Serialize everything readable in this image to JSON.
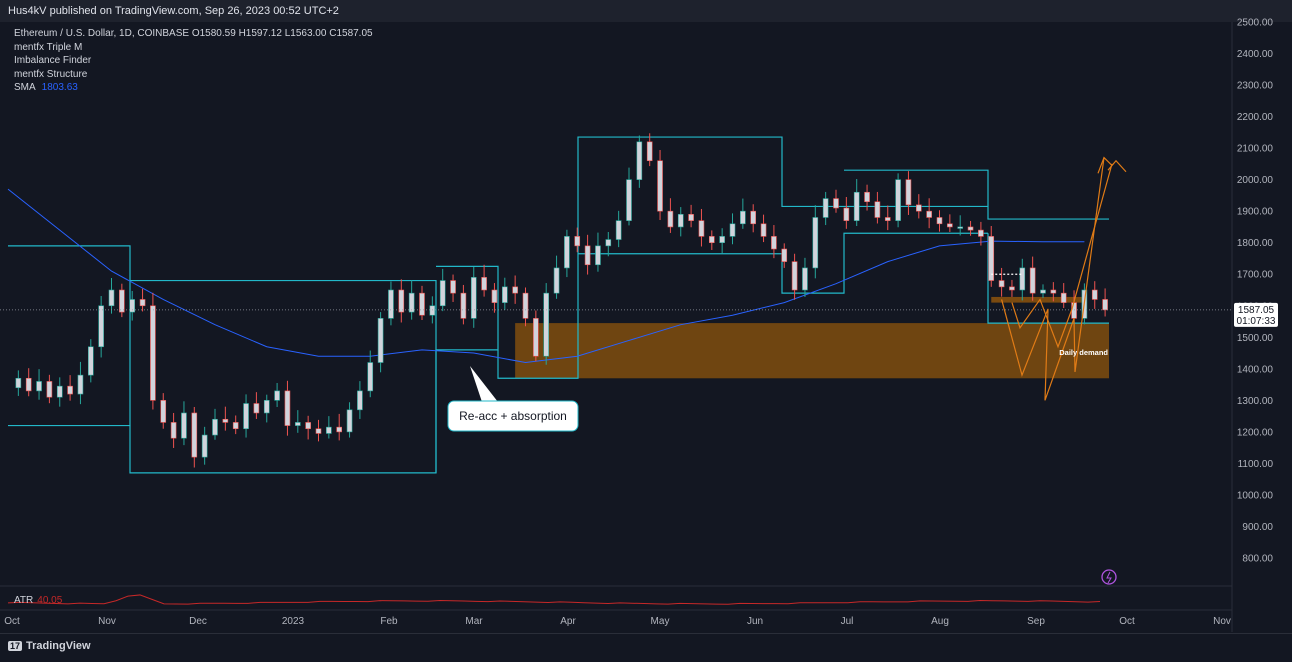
{
  "header": {
    "publish_line": "Hus4kV published on TradingView.com, Sep 26, 2023 00:52 UTC+2"
  },
  "legend": {
    "symbol_line": "Ethereum / U.S. Dollar, 1D, COINBASE",
    "ohlc": {
      "o": "O1580.59",
      "h": "H1597.12",
      "l": "L1563.00",
      "c": "C1587.05"
    },
    "indicators": [
      "mentfx Triple M",
      "Imbalance Finder",
      "mentfx Structure"
    ],
    "sma_label": "SMA",
    "sma_value": "1803.63"
  },
  "atr": {
    "label": "ATR",
    "value": "40.05"
  },
  "price_label": {
    "price": "1587.05",
    "countdown": "01:07:33"
  },
  "annotations": {
    "callout": "Re-acc + absorption",
    "zone_label": "Daily demand"
  },
  "footer": {
    "brand": "TradingView"
  },
  "colors": {
    "background": "#131722",
    "up_candle": "#26a69a",
    "down_candle": "#ef5350",
    "structure_box": "#22b8c9",
    "sma_line": "#2962ff",
    "demand_zone": "#7a4a10",
    "projection": "#e07b16",
    "atr_line": "#c62828"
  },
  "chart_data": {
    "type": "candlestick",
    "title": "Ethereum / U.S. Dollar, 1D, COINBASE",
    "xlabel": "",
    "ylabel": "",
    "ylim": [
      700,
      2500
    ],
    "y_ticks": [
      "2500.00",
      "2400.00",
      "2300.00",
      "2200.00",
      "2100.00",
      "2000.00",
      "1900.00",
      "1800.00",
      "1700.00",
      "1600.00",
      "1500.00",
      "1400.00",
      "1300.00",
      "1200.00",
      "1100.00",
      "1000.00",
      "900.00",
      "800.00"
    ],
    "x_ticks": [
      "Oct",
      "Nov",
      "Dec",
      "2023",
      "Feb",
      "Mar",
      "Apr",
      "May",
      "Jun",
      "Jul",
      "Aug",
      "Sep",
      "Oct",
      "Nov"
    ],
    "last_close": 1587.05,
    "price_path": [
      [
        0,
        1340
      ],
      [
        1,
        1370
      ],
      [
        2,
        1330
      ],
      [
        3,
        1360
      ],
      [
        4,
        1310
      ],
      [
        5,
        1345
      ],
      [
        6,
        1320
      ],
      [
        7,
        1380
      ],
      [
        8,
        1470
      ],
      [
        9,
        1600
      ],
      [
        10,
        1650
      ],
      [
        11,
        1580
      ],
      [
        12,
        1620
      ],
      [
        13,
        1600
      ],
      [
        14,
        1300
      ],
      [
        15,
        1230
      ],
      [
        16,
        1180
      ],
      [
        17,
        1260
      ],
      [
        18,
        1120
      ],
      [
        19,
        1190
      ],
      [
        20,
        1240
      ],
      [
        21,
        1230
      ],
      [
        22,
        1210
      ],
      [
        23,
        1290
      ],
      [
        24,
        1260
      ],
      [
        25,
        1300
      ],
      [
        26,
        1330
      ],
      [
        27,
        1220
      ],
      [
        28,
        1230
      ],
      [
        29,
        1210
      ],
      [
        30,
        1195
      ],
      [
        31,
        1215
      ],
      [
        32,
        1200
      ],
      [
        33,
        1270
      ],
      [
        34,
        1330
      ],
      [
        35,
        1420
      ],
      [
        36,
        1560
      ],
      [
        37,
        1650
      ],
      [
        38,
        1580
      ],
      [
        39,
        1640
      ],
      [
        40,
        1570
      ],
      [
        41,
        1600
      ],
      [
        42,
        1680
      ],
      [
        43,
        1640
      ],
      [
        44,
        1560
      ],
      [
        45,
        1690
      ],
      [
        46,
        1650
      ],
      [
        47,
        1610
      ],
      [
        48,
        1660
      ],
      [
        49,
        1640
      ],
      [
        50,
        1560
      ],
      [
        51,
        1440
      ],
      [
        52,
        1640
      ],
      [
        53,
        1720
      ],
      [
        54,
        1820
      ],
      [
        55,
        1790
      ],
      [
        56,
        1730
      ],
      [
        57,
        1790
      ],
      [
        58,
        1810
      ],
      [
        59,
        1870
      ],
      [
        60,
        2000
      ],
      [
        61,
        2120
      ],
      [
        62,
        2060
      ],
      [
        63,
        1900
      ],
      [
        64,
        1850
      ],
      [
        65,
        1890
      ],
      [
        66,
        1870
      ],
      [
        67,
        1820
      ],
      [
        68,
        1800
      ],
      [
        69,
        1820
      ],
      [
        70,
        1860
      ],
      [
        71,
        1900
      ],
      [
        72,
        1860
      ],
      [
        73,
        1820
      ],
      [
        74,
        1780
      ],
      [
        75,
        1740
      ],
      [
        76,
        1650
      ],
      [
        77,
        1720
      ],
      [
        78,
        1880
      ],
      [
        79,
        1940
      ],
      [
        80,
        1910
      ],
      [
        81,
        1870
      ],
      [
        82,
        1960
      ],
      [
        83,
        1930
      ],
      [
        84,
        1880
      ],
      [
        85,
        1870
      ],
      [
        86,
        2000
      ],
      [
        87,
        1920
      ],
      [
        88,
        1900
      ],
      [
        89,
        1880
      ],
      [
        90,
        1860
      ],
      [
        91,
        1850
      ],
      [
        92,
        1850
      ],
      [
        93,
        1840
      ],
      [
        94,
        1820
      ],
      [
        95,
        1680
      ],
      [
        96,
        1660
      ],
      [
        97,
        1650
      ],
      [
        98,
        1720
      ],
      [
        99,
        1640
      ],
      [
        100,
        1650
      ],
      [
        101,
        1640
      ],
      [
        102,
        1610
      ],
      [
        103,
        1560
      ],
      [
        104,
        1650
      ],
      [
        105,
        1620
      ],
      [
        106,
        1587
      ]
    ],
    "structure_boxes_price": [
      {
        "top": 1790,
        "bottom": 1220
      },
      {
        "top": 1680,
        "bottom": 1070
      },
      {
        "top": 1725,
        "bottom": 1165
      },
      {
        "top": 2135,
        "bottom": 1370
      },
      {
        "top": 2030,
        "bottom": 1640
      },
      {
        "top": 1545,
        "bottom": 1545
      }
    ],
    "demand_zone": {
      "top": 1545,
      "bottom": 1370
    },
    "sma_path": [
      [
        0,
        1970
      ],
      [
        5,
        1840
      ],
      [
        10,
        1710
      ],
      [
        15,
        1620
      ],
      [
        20,
        1540
      ],
      [
        25,
        1470
      ],
      [
        30,
        1440
      ],
      [
        35,
        1440
      ],
      [
        40,
        1460
      ],
      [
        45,
        1450
      ],
      [
        50,
        1420
      ],
      [
        55,
        1440
      ],
      [
        60,
        1490
      ],
      [
        65,
        1540
      ],
      [
        70,
        1570
      ],
      [
        75,
        1610
      ],
      [
        80,
        1670
      ],
      [
        85,
        1740
      ],
      [
        90,
        1790
      ],
      [
        95,
        1805
      ],
      [
        100,
        1803
      ],
      [
        104,
        1803
      ]
    ]
  }
}
